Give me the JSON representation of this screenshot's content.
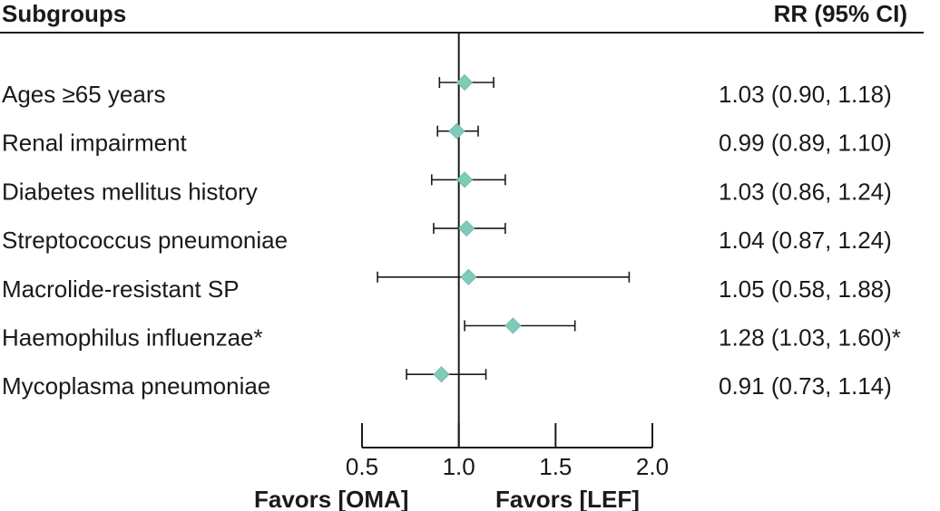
{
  "headers": {
    "left": "Subgroups",
    "right": "RR (95% CI)"
  },
  "favors": {
    "left": "Favors [OMA]",
    "right": "Favors [LEF]"
  },
  "marker_color": "#7ecbb9",
  "chart_data": {
    "type": "forest",
    "xlim": [
      0.5,
      2.0
    ],
    "reference_line": 1.0,
    "ticks": [
      0.5,
      1.0,
      1.5,
      2.0
    ],
    "tick_labels": [
      "0.5",
      "1.0",
      "1.5",
      "2.0"
    ],
    "rows": [
      {
        "label": "Ages  ≥65 years",
        "rr": 1.03,
        "lo": 0.9,
        "hi": 1.18,
        "text": "1.03 (0.90, 1.18)"
      },
      {
        "label": "Renal impairment",
        "rr": 0.99,
        "lo": 0.89,
        "hi": 1.1,
        "text": "0.99 (0.89, 1.10)"
      },
      {
        "label": "Diabetes mellitus history",
        "rr": 1.03,
        "lo": 0.86,
        "hi": 1.24,
        "text": "1.03 (0.86, 1.24)"
      },
      {
        "label": "Streptococcus pneumoniae",
        "rr": 1.04,
        "lo": 0.87,
        "hi": 1.24,
        "text": "1.04 (0.87, 1.24)"
      },
      {
        "label": "Macrolide-resistant SP",
        "rr": 1.05,
        "lo": 0.58,
        "hi": 1.88,
        "text": "1.05 (0.58, 1.88)"
      },
      {
        "label": "Haemophilus influenzae*",
        "rr": 1.28,
        "lo": 1.03,
        "hi": 1.6,
        "text": "1.28 (1.03, 1.60)*"
      },
      {
        "label": "Mycoplasma pneumoniae",
        "rr": 0.91,
        "lo": 0.73,
        "hi": 1.14,
        "text": "0.91 (0.73, 1.14)"
      }
    ]
  }
}
